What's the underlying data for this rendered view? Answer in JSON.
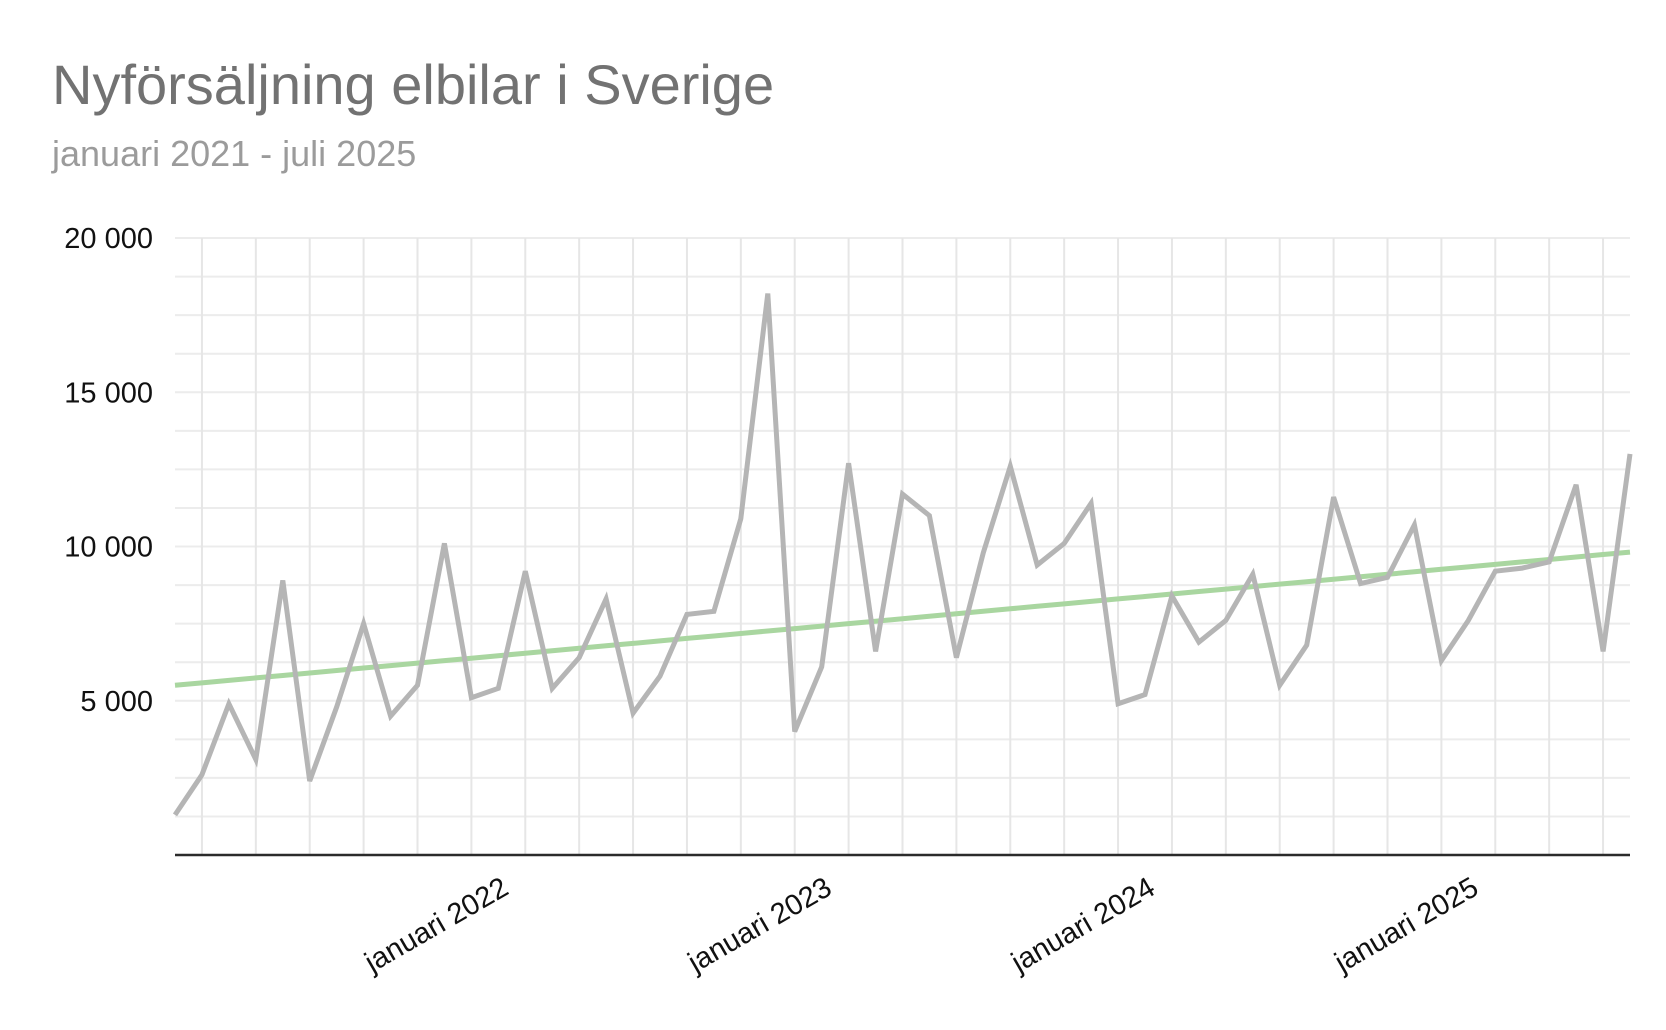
{
  "chart_data": {
    "type": "line",
    "title": "Nyförsäljning elbilar i Sverige",
    "subtitle": "januari 2021 - juli 2025",
    "xlabel": "",
    "ylabel": "",
    "ylim": [
      0,
      20000
    ],
    "y_ticks": [
      5000,
      10000,
      15000,
      20000
    ],
    "y_tick_labels": [
      "5 000",
      "10 000",
      "15 000",
      "20 000"
    ],
    "x_tick_labels": [
      "januari 2022",
      "januari 2023",
      "januari 2024",
      "januari 2025"
    ],
    "x_tick_dates": [
      "2022-01",
      "2023-01",
      "2024-01",
      "2025-01"
    ],
    "grid": true,
    "x": [
      "2021-01",
      "2021-02",
      "2021-03",
      "2021-04",
      "2021-05",
      "2021-06",
      "2021-07",
      "2021-08",
      "2021-09",
      "2021-10",
      "2021-11",
      "2021-12",
      "2022-01",
      "2022-02",
      "2022-03",
      "2022-04",
      "2022-05",
      "2022-06",
      "2022-07",
      "2022-08",
      "2022-09",
      "2022-10",
      "2022-11",
      "2022-12",
      "2023-01",
      "2023-02",
      "2023-03",
      "2023-04",
      "2023-05",
      "2023-06",
      "2023-07",
      "2023-08",
      "2023-09",
      "2023-10",
      "2023-11",
      "2023-12",
      "2024-01",
      "2024-02",
      "2024-03",
      "2024-04",
      "2024-05",
      "2024-06",
      "2024-07",
      "2024-08",
      "2024-09",
      "2024-10",
      "2024-11",
      "2024-12",
      "2025-01",
      "2025-02",
      "2025-03",
      "2025-04",
      "2025-05",
      "2025-06",
      "2025-07"
    ],
    "series": [
      {
        "color": "#b5b5b5",
        "values": [
          1300,
          2600,
          4900,
          3100,
          8900,
          2400,
          4800,
          7500,
          4500,
          5500,
          10100,
          5100,
          5400,
          9200,
          5400,
          6400,
          8300,
          4600,
          5800,
          7800,
          7900,
          10900,
          18200,
          4000,
          6100,
          12700,
          6600,
          11700,
          11000,
          6400,
          9800,
          12600,
          9400,
          10100,
          11400,
          4900,
          5200,
          8400,
          6900,
          7600,
          9100,
          5500,
          6800,
          11600,
          8800,
          9000,
          10700,
          6300,
          7600,
          9200,
          9300,
          9500,
          12000,
          6600,
          13000
        ]
      },
      {
        "color": "#a9d6a0",
        "values": [
          5500,
          5580,
          5660,
          5740,
          5820,
          5900,
          5980,
          6060,
          6140,
          6220,
          6300,
          6380,
          6460,
          6540,
          6620,
          6700,
          6780,
          6860,
          6940,
          7020,
          7100,
          7180,
          7260,
          7340,
          7420,
          7500,
          7580,
          7660,
          7740,
          7820,
          7900,
          7980,
          8060,
          8140,
          8220,
          8300,
          8380,
          8460,
          8540,
          8620,
          8700,
          8780,
          8860,
          8940,
          9020,
          9100,
          9180,
          9260,
          9340,
          9420,
          9500,
          9580,
          9660,
          9740,
          9820
        ]
      }
    ]
  }
}
